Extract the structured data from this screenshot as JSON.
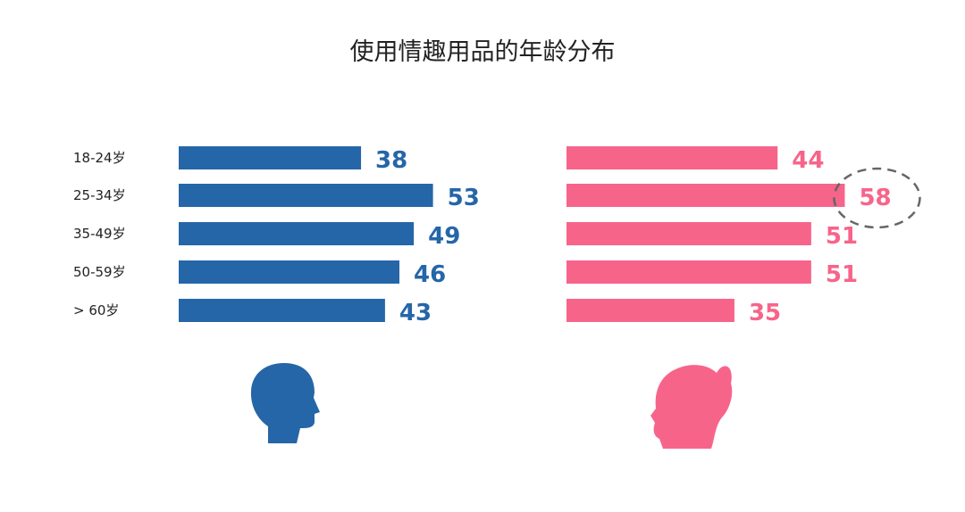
{
  "chart_data": {
    "type": "bar",
    "orientation": "horizontal",
    "title": "使用情趣用品的年龄分布",
    "categories": [
      "18-24岁",
      "25-34岁",
      "35-49岁",
      "50-59岁",
      "> 60岁"
    ],
    "series": [
      {
        "values": [
          38,
          53,
          49,
          46,
          43
        ],
        "color": "#2566a8",
        "icon": "male-head-silhouette-icon"
      },
      {
        "values": [
          44,
          58,
          51,
          51,
          35
        ],
        "color": "#f7648a",
        "icon": "female-head-silhouette-icon"
      }
    ],
    "highlight": {
      "series": 1,
      "category": 1,
      "style": "dashed-ellipse",
      "color": "#666666"
    },
    "grid": false,
    "legend": "none"
  }
}
